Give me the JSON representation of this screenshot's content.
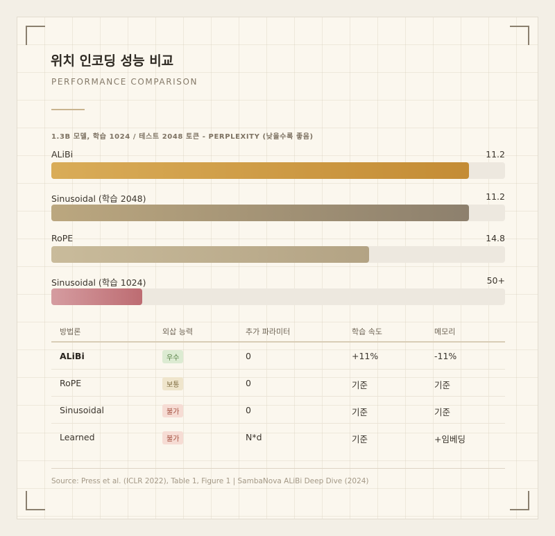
{
  "title": "위치 인코딩 성능 비교",
  "subtitle": "PERFORMANCE COMPARISON",
  "chart_caption": "1.3B 모델, 학습 1024 / 테스트 2048 토큰 - PERPLEXITY (낮을수록 좋음)",
  "chart_data": {
    "type": "bar",
    "orientation": "horizontal",
    "categories": [
      "ALiBi",
      "Sinusoidal (학습 2048)",
      "RoPE",
      "Sinusoidal (학습 1024)"
    ],
    "value_labels": [
      "11.2",
      "11.2",
      "14.8",
      "50+"
    ],
    "values": [
      11.2,
      11.2,
      14.8,
      50
    ],
    "fill_fraction": [
      0.92,
      0.92,
      0.7,
      0.2
    ],
    "colors": [
      [
        "#d9ac58",
        "#c48c35"
      ],
      [
        "#bba77f",
        "#8d806d"
      ],
      [
        "#c9bb9b",
        "#b3a384"
      ],
      [
        "#d59ca0",
        "#bd6c72"
      ]
    ],
    "legend": "none",
    "grid": false
  },
  "table": {
    "headers": [
      "방법론",
      "외삽 능력",
      "추가 파라미터",
      "학습 속도",
      "메모리"
    ],
    "rows": [
      {
        "method": "ALiBi",
        "bold": true,
        "ability": "우수",
        "badge_bg": "#dcebd2",
        "badge_fg": "#4f7a3c",
        "params": "0",
        "speed": "+11%",
        "memory": "-11%"
      },
      {
        "method": "RoPE",
        "bold": false,
        "ability": "보통",
        "badge_bg": "#efe5cc",
        "badge_fg": "#7d6a3e",
        "params": "0",
        "speed": "기준",
        "memory": "기준"
      },
      {
        "method": "Sinusoidal",
        "bold": false,
        "ability": "불가",
        "badge_bg": "#f6dcd4",
        "badge_fg": "#a34f3e",
        "params": "0",
        "speed": "기준",
        "memory": "기준"
      },
      {
        "method": "Learned",
        "bold": false,
        "ability": "불가",
        "badge_bg": "#f6dcd4",
        "badge_fg": "#a34f3e",
        "params": "N*d",
        "speed": "기준",
        "memory": "+임베딩"
      }
    ]
  },
  "source": "Source: Press et al. (ICLR 2022), Table 1, Figure 1 | SambaNova ALiBi Deep Dive (2024)"
}
